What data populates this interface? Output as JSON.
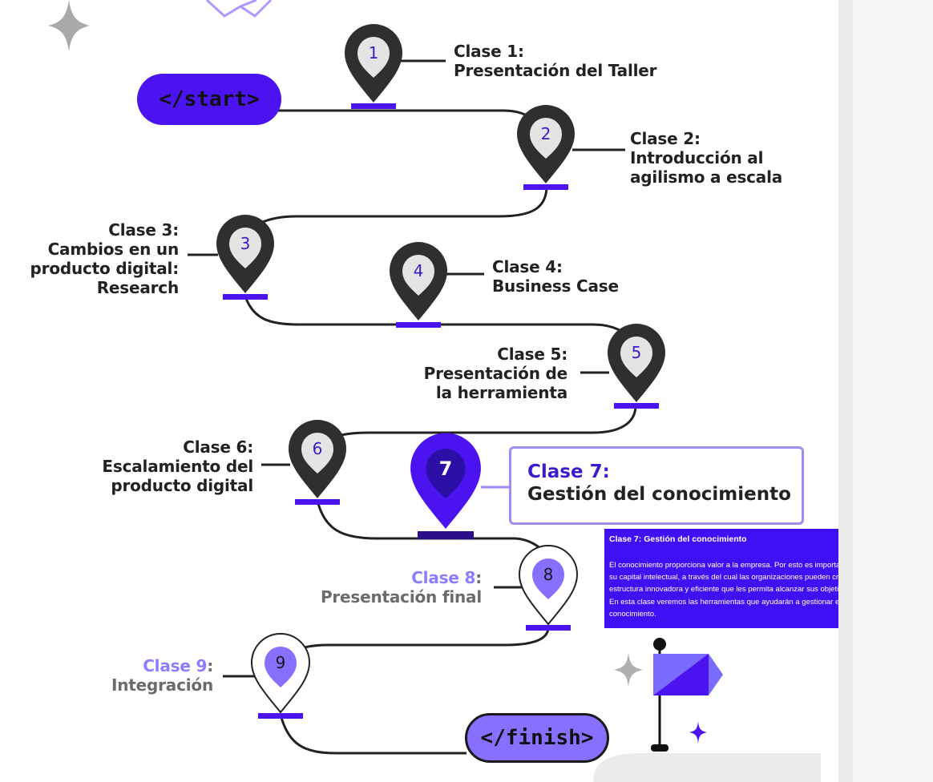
{
  "roadmap": {
    "start_label": "</start>",
    "finish_label": "</finish>",
    "pins": [
      {
        "num": "1",
        "label_a": "Clase 1:",
        "label_b": "Presentación del Taller",
        "label_c": "",
        "state": "done"
      },
      {
        "num": "2",
        "label_a": "Clase 2:",
        "label_b": "Introducción al",
        "label_c": "agilismo a escala",
        "state": "done"
      },
      {
        "num": "3",
        "label_a": "Clase 3:",
        "label_b": "Cambios en un",
        "label_c": "producto digital:",
        "label_d": "Research",
        "state": "done"
      },
      {
        "num": "4",
        "label_a": "Clase 4:",
        "label_b": "Business Case",
        "label_c": "",
        "state": "done"
      },
      {
        "num": "5",
        "label_a": "Clase 5:",
        "label_b": "Presentación de",
        "label_c": "la herramienta",
        "state": "done"
      },
      {
        "num": "6",
        "label_a": "Clase 6:",
        "label_b": "Escalamiento del",
        "label_c": "producto digital",
        "state": "done"
      },
      {
        "num": "7",
        "label_a": "Clase 7:",
        "label_b": "Gestión del conocimiento",
        "label_c": "",
        "state": "active"
      },
      {
        "num": "8",
        "label_a": "Clase 8",
        "colon": ":",
        "label_b": "Presentación final",
        "label_c": "",
        "state": "upcoming"
      },
      {
        "num": "9",
        "label_a": "Clase 9",
        "colon": ":",
        "label_b": "Integración",
        "label_c": "",
        "state": "upcoming"
      }
    ]
  },
  "tooltip": {
    "title": "Clase 7: Gestión del conocimiento",
    "body": "El conocimiento proporciona valor a la empresa. Por esto es importante considerar su capital intelectual, a través del cual las organizaciones pueden crear una estructura innovadora y eficiente que les permita alcanzar sus objetivos estratégicos. En esta clase veremos las herramientas que ayudarán a gestionar este conocimiento."
  },
  "colors": {
    "accent": "#4a13f0",
    "accent_light": "#8570ff",
    "pin_dark": "#2f2f2f",
    "pin_active": "#4a13f0",
    "pin_active_inner": "#2a0ea6",
    "tooltip_bg": "#3f10f3",
    "active_box_border": "#9b90f2"
  },
  "icons": {
    "sparkle": "sparkle-icon",
    "flag": "flag-icon",
    "pin": "map-pin-icon"
  }
}
